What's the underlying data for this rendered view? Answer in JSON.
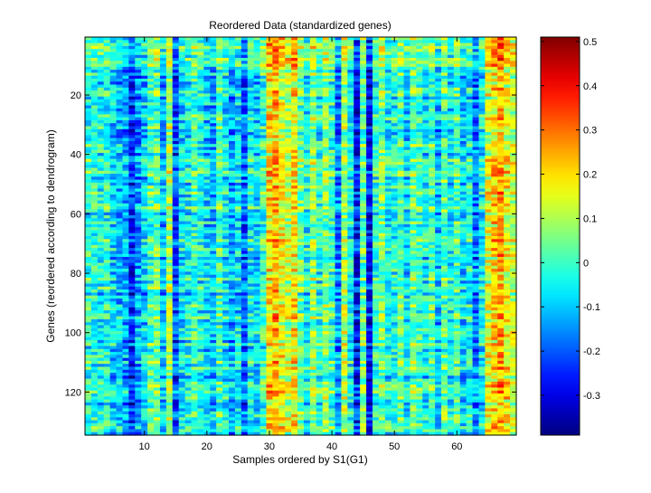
{
  "chart_data": {
    "type": "heatmap",
    "title": "Reordered Data (standardized genes)",
    "xlabel": "Samples ordered by S1(G1)",
    "ylabel": "Genes (reordered according to dendrogram)",
    "n_columns": 69,
    "n_rows": 134,
    "xlim": [
      0.5,
      69.5
    ],
    "ylim": [
      0.5,
      134.5
    ],
    "y_direction": "reverse",
    "x_ticks": [
      10,
      20,
      30,
      40,
      50,
      60
    ],
    "y_ticks": [
      20,
      40,
      60,
      80,
      100,
      120
    ],
    "colormap": "jet",
    "colorbar": {
      "position": "right",
      "min": -0.39,
      "max": 0.51,
      "ticks": [
        0.5,
        0.4,
        0.3,
        0.2,
        0.1,
        0,
        -0.1,
        -0.2,
        -0.3
      ]
    },
    "column_profile": [
      -0.02,
      -0.02,
      -0.04,
      -0.03,
      -0.08,
      -0.12,
      -0.14,
      -0.28,
      -0.16,
      -0.1,
      0.02,
      0.05,
      -0.12,
      0.12,
      -0.25,
      -0.08,
      -0.06,
      0.0,
      -0.04,
      -0.1,
      -0.12,
      0.02,
      -0.06,
      -0.14,
      -0.08,
      -0.22,
      -0.05,
      -0.08,
      0.0,
      0.24,
      0.28,
      0.2,
      0.14,
      0.22,
      0.05,
      -0.05,
      0.1,
      -0.02,
      0.08,
      0.0,
      -0.18,
      0.12,
      -0.06,
      -0.3,
      0.05,
      -0.32,
      -0.02,
      0.08,
      -0.04,
      -0.02,
      0.04,
      -0.08,
      0.06,
      0.0,
      -0.06,
      0.02,
      -0.12,
      0.04,
      -0.06,
      0.02,
      -0.1,
      -0.04,
      -0.18,
      -0.06,
      0.18,
      0.24,
      0.3,
      0.2,
      0.14
    ],
    "column_profile_note": "",
    "bands": [
      {
        "rows": [
          1,
          10
        ],
        "shift": 0.04
      },
      {
        "rows": [
          10,
          40
        ],
        "shift": -0.02
      },
      {
        "rows": [
          40,
          70
        ],
        "shift": 0.01
      },
      {
        "rows": [
          70,
          100
        ],
        "shift": -0.01
      },
      {
        "rows": [
          100,
          134
        ],
        "shift": 0.0
      }
    ]
  }
}
